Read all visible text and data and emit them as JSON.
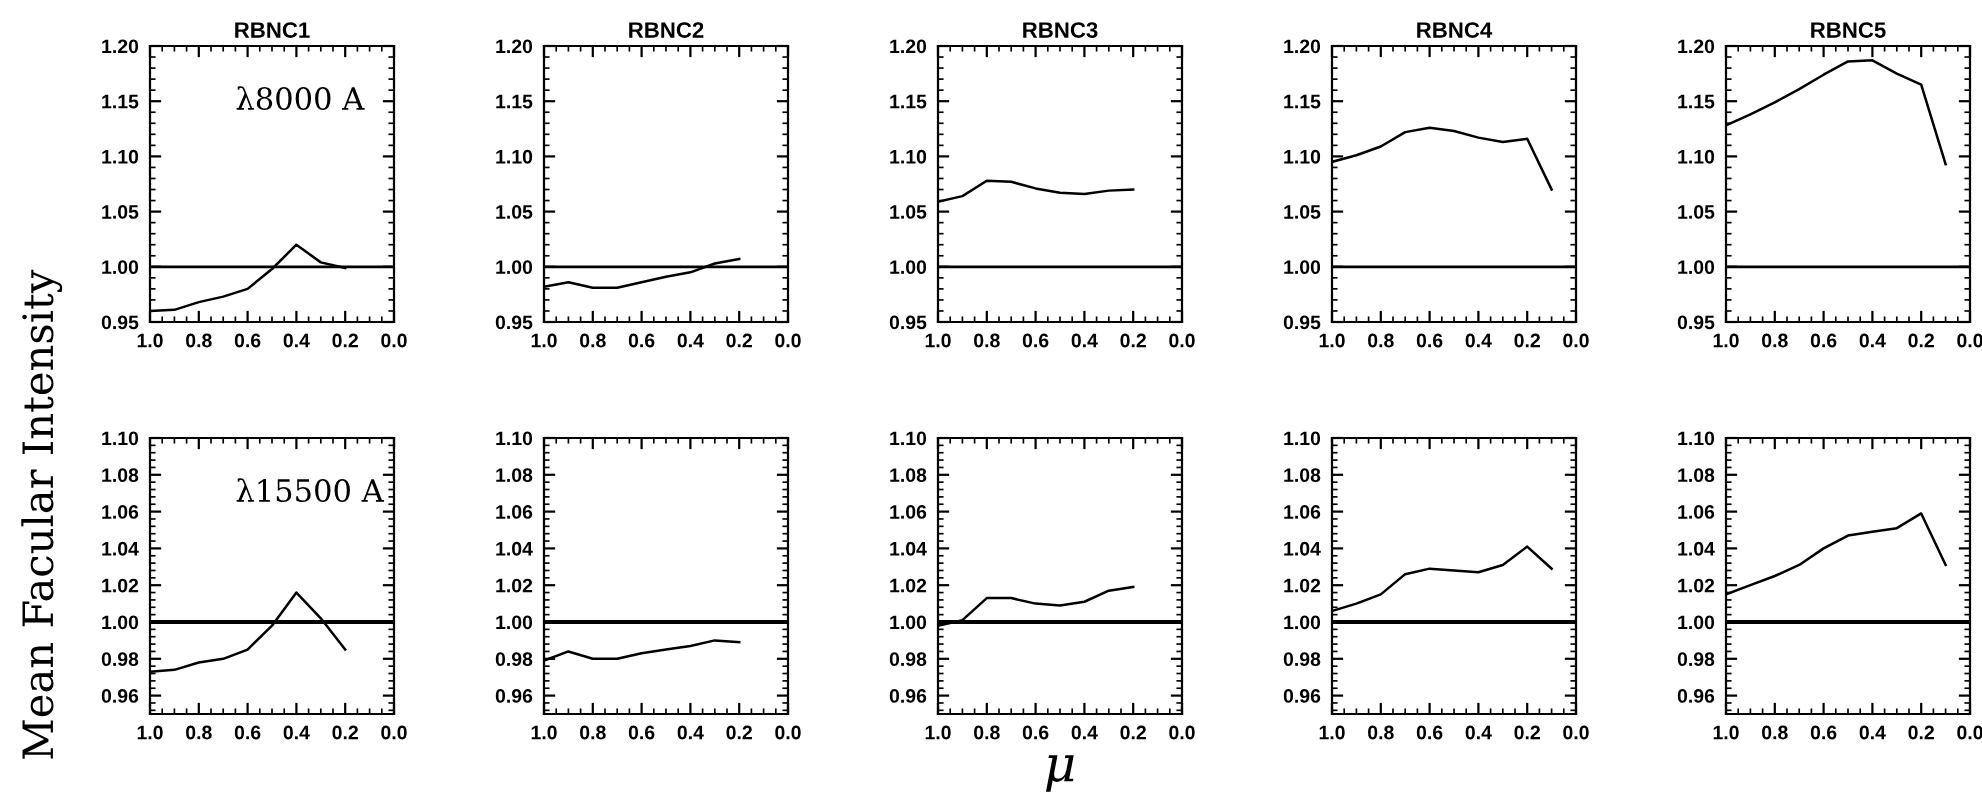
{
  "chart_data": [
    {
      "type": "line",
      "title": "RBNC1",
      "annotations": [
        "λ8000 A"
      ],
      "x": [
        1.0,
        0.9,
        0.8,
        0.7,
        0.6,
        0.5,
        0.4,
        0.3,
        0.2
      ],
      "values": [
        0.96,
        0.961,
        0.968,
        0.973,
        0.98,
        0.998,
        1.02,
        1.004,
        0.999
      ],
      "color": "#000000",
      "xlim": [
        1.0,
        0.0
      ],
      "xticks": [
        {
          "value": 1.0,
          "label": "1.0"
        },
        {
          "value": 0.8,
          "label": "0.8"
        },
        {
          "value": 0.6,
          "label": "0.6"
        },
        {
          "value": 0.4,
          "label": "0.4"
        },
        {
          "value": 0.2,
          "label": "0.2"
        },
        {
          "value": 0.0,
          "label": "0.0"
        }
      ],
      "ylim": [
        0.95,
        1.2
      ],
      "yticks": [
        0.95,
        {
          "value": 1.0,
          "label": "1.00"
        },
        1.05,
        {
          "value": 1.1,
          "label": "1.10"
        },
        1.15,
        {
          "value": 1.2,
          "label": "1.20"
        }
      ],
      "ref_lines": [
        {
          "axis": "y",
          "value": 1.0,
          "color": "#000000"
        }
      ]
    },
    {
      "type": "line",
      "title": "RBNC2",
      "x": [
        1.0,
        0.9,
        0.8,
        0.7,
        0.6,
        0.5,
        0.4,
        0.3,
        0.2
      ],
      "values": [
        0.982,
        0.986,
        0.981,
        0.981,
        0.986,
        0.991,
        0.995,
        1.003,
        1.007
      ],
      "color": "#000000",
      "xlim": [
        1.0,
        0.0
      ],
      "xticks": [
        {
          "value": 1.0,
          "label": "1.0"
        },
        {
          "value": 0.8,
          "label": "0.8"
        },
        {
          "value": 0.6,
          "label": "0.6"
        },
        {
          "value": 0.4,
          "label": "0.4"
        },
        {
          "value": 0.2,
          "label": "0.2"
        },
        {
          "value": 0.0,
          "label": "0.0"
        }
      ],
      "ylim": [
        0.95,
        1.2
      ],
      "yticks": [
        0.95,
        {
          "value": 1.0,
          "label": "1.00"
        },
        1.05,
        {
          "value": 1.1,
          "label": "1.10"
        },
        1.15,
        {
          "value": 1.2,
          "label": "1.20"
        }
      ],
      "ref_lines": [
        {
          "axis": "y",
          "value": 1.0,
          "color": "#000000"
        }
      ]
    },
    {
      "type": "line",
      "title": "RBNC3",
      "x": [
        1.0,
        0.9,
        0.8,
        0.7,
        0.6,
        0.5,
        0.4,
        0.3,
        0.2
      ],
      "values": [
        1.059,
        1.064,
        1.078,
        1.077,
        1.071,
        1.067,
        1.066,
        1.069,
        1.07
      ],
      "color": "#000000",
      "xlim": [
        1.0,
        0.0
      ],
      "xticks": [
        {
          "value": 1.0,
          "label": "1.0"
        },
        {
          "value": 0.8,
          "label": "0.8"
        },
        {
          "value": 0.6,
          "label": "0.6"
        },
        {
          "value": 0.4,
          "label": "0.4"
        },
        {
          "value": 0.2,
          "label": "0.2"
        },
        {
          "value": 0.0,
          "label": "0.0"
        }
      ],
      "ylim": [
        0.95,
        1.2
      ],
      "yticks": [
        0.95,
        {
          "value": 1.0,
          "label": "1.00"
        },
        1.05,
        {
          "value": 1.1,
          "label": "1.10"
        },
        1.15,
        {
          "value": 1.2,
          "label": "1.20"
        }
      ],
      "ref_lines": [
        {
          "axis": "y",
          "value": 1.0,
          "color": "#000000"
        }
      ]
    },
    {
      "type": "line",
      "title": "RBNC4",
      "x": [
        1.0,
        0.9,
        0.8,
        0.7,
        0.6,
        0.5,
        0.4,
        0.3,
        0.2,
        0.1
      ],
      "values": [
        1.095,
        1.101,
        1.109,
        1.122,
        1.126,
        1.123,
        1.117,
        1.113,
        1.116,
        1.07
      ],
      "color": "#000000",
      "xlim": [
        1.0,
        0.0
      ],
      "xticks": [
        {
          "value": 1.0,
          "label": "1.0"
        },
        {
          "value": 0.8,
          "label": "0.8"
        },
        {
          "value": 0.6,
          "label": "0.6"
        },
        {
          "value": 0.4,
          "label": "0.4"
        },
        {
          "value": 0.2,
          "label": "0.2"
        },
        {
          "value": 0.0,
          "label": "0.0"
        }
      ],
      "ylim": [
        0.95,
        1.2
      ],
      "yticks": [
        0.95,
        {
          "value": 1.0,
          "label": "1.00"
        },
        1.05,
        {
          "value": 1.1,
          "label": "1.10"
        },
        1.15,
        {
          "value": 1.2,
          "label": "1.20"
        }
      ],
      "ref_lines": [
        {
          "axis": "y",
          "value": 1.0,
          "color": "#000000"
        }
      ]
    },
    {
      "type": "line",
      "title": "RBNC5",
      "x": [
        1.0,
        0.9,
        0.8,
        0.7,
        0.6,
        0.5,
        0.4,
        0.3,
        0.2,
        0.1
      ],
      "values": [
        1.128,
        1.138,
        1.149,
        1.161,
        1.174,
        1.186,
        1.187,
        1.175,
        1.165,
        1.093
      ],
      "color": "#000000",
      "xlim": [
        1.0,
        0.0
      ],
      "xticks": [
        {
          "value": 1.0,
          "label": "1.0"
        },
        {
          "value": 0.8,
          "label": "0.8"
        },
        {
          "value": 0.6,
          "label": "0.6"
        },
        {
          "value": 0.4,
          "label": "0.4"
        },
        {
          "value": 0.2,
          "label": "0.2"
        },
        {
          "value": 0.0,
          "label": "0.0"
        }
      ],
      "ylim": [
        0.95,
        1.2
      ],
      "yticks": [
        0.95,
        {
          "value": 1.0,
          "label": "1.00"
        },
        1.05,
        {
          "value": 1.1,
          "label": "1.10"
        },
        1.15,
        {
          "value": 1.2,
          "label": "1.20"
        }
      ],
      "ref_lines": [
        {
          "axis": "y",
          "value": 1.0,
          "color": "#000000"
        }
      ]
    },
    {
      "type": "line",
      "ylabel": "Mean Facular Intensity",
      "annotations": [
        "λ15500 A"
      ],
      "x": [
        1.0,
        0.9,
        0.8,
        0.7,
        0.6,
        0.5,
        0.4,
        0.3,
        0.2
      ],
      "values": [
        0.973,
        0.974,
        0.978,
        0.98,
        0.985,
        0.998,
        1.016,
        1.002,
        0.985
      ],
      "color": "#000000",
      "xlim": [
        1.0,
        0.0
      ],
      "xticks": [
        {
          "value": 1.0,
          "label": "1.0"
        },
        {
          "value": 0.8,
          "label": "0.8"
        },
        {
          "value": 0.6,
          "label": "0.6"
        },
        {
          "value": 0.4,
          "label": "0.4"
        },
        {
          "value": 0.2,
          "label": "0.2"
        },
        {
          "value": 0.0,
          "label": "0.0"
        }
      ],
      "ylim": [
        0.95,
        1.1
      ],
      "yticks": [
        0.96,
        0.98,
        {
          "value": 1.0,
          "label": "1.00"
        },
        1.02,
        1.04,
        1.06,
        1.08,
        {
          "value": 1.1,
          "label": "1.10"
        }
      ],
      "ref_lines": [
        {
          "axis": "y",
          "value": 1.0,
          "color": "#000000"
        }
      ]
    },
    {
      "type": "line",
      "x": [
        1.0,
        0.9,
        0.8,
        0.7,
        0.6,
        0.5,
        0.4,
        0.3,
        0.2
      ],
      "values": [
        0.979,
        0.984,
        0.98,
        0.98,
        0.983,
        0.985,
        0.987,
        0.99,
        0.989
      ],
      "color": "#000000",
      "xlim": [
        1.0,
        0.0
      ],
      "xticks": [
        {
          "value": 1.0,
          "label": "1.0"
        },
        {
          "value": 0.8,
          "label": "0.8"
        },
        {
          "value": 0.6,
          "label": "0.6"
        },
        {
          "value": 0.4,
          "label": "0.4"
        },
        {
          "value": 0.2,
          "label": "0.2"
        },
        {
          "value": 0.0,
          "label": "0.0"
        }
      ],
      "ylim": [
        0.95,
        1.1
      ],
      "yticks": [
        0.96,
        0.98,
        {
          "value": 1.0,
          "label": "1.00"
        },
        1.02,
        1.04,
        1.06,
        1.08,
        {
          "value": 1.1,
          "label": "1.10"
        }
      ],
      "ref_lines": [
        {
          "axis": "y",
          "value": 1.0,
          "color": "#000000"
        }
      ]
    },
    {
      "type": "line",
      "xlabel": "μ",
      "x": [
        1.0,
        0.9,
        0.8,
        0.7,
        0.6,
        0.5,
        0.4,
        0.3,
        0.2
      ],
      "values": [
        0.998,
        1.001,
        1.013,
        1.013,
        1.01,
        1.009,
        1.011,
        1.017,
        1.019
      ],
      "color": "#000000",
      "xlim": [
        1.0,
        0.0
      ],
      "xticks": [
        {
          "value": 1.0,
          "label": "1.0"
        },
        {
          "value": 0.8,
          "label": "0.8"
        },
        {
          "value": 0.6,
          "label": "0.6"
        },
        {
          "value": 0.4,
          "label": "0.4"
        },
        {
          "value": 0.2,
          "label": "0.2"
        },
        {
          "value": 0.0,
          "label": "0.0"
        }
      ],
      "ylim": [
        0.95,
        1.1
      ],
      "yticks": [
        0.96,
        0.98,
        {
          "value": 1.0,
          "label": "1.00"
        },
        1.02,
        1.04,
        1.06,
        1.08,
        {
          "value": 1.1,
          "label": "1.10"
        }
      ],
      "ref_lines": [
        {
          "axis": "y",
          "value": 1.0,
          "color": "#000000"
        }
      ]
    },
    {
      "type": "line",
      "x": [
        1.0,
        0.9,
        0.8,
        0.7,
        0.6,
        0.5,
        0.4,
        0.3,
        0.2,
        0.1
      ],
      "values": [
        1.006,
        1.01,
        1.015,
        1.026,
        1.029,
        1.028,
        1.027,
        1.031,
        1.041,
        1.029
      ],
      "color": "#000000",
      "xlim": [
        1.0,
        0.0
      ],
      "xticks": [
        {
          "value": 1.0,
          "label": "1.0"
        },
        {
          "value": 0.8,
          "label": "0.8"
        },
        {
          "value": 0.6,
          "label": "0.6"
        },
        {
          "value": 0.4,
          "label": "0.4"
        },
        {
          "value": 0.2,
          "label": "0.2"
        },
        {
          "value": 0.0,
          "label": "0.0"
        }
      ],
      "ylim": [
        0.95,
        1.1
      ],
      "yticks": [
        0.96,
        0.98,
        {
          "value": 1.0,
          "label": "1.00"
        },
        1.02,
        1.04,
        1.06,
        1.08,
        {
          "value": 1.1,
          "label": "1.10"
        }
      ],
      "ref_lines": [
        {
          "axis": "y",
          "value": 1.0,
          "color": "#000000"
        }
      ]
    },
    {
      "type": "line",
      "x": [
        1.0,
        0.9,
        0.8,
        0.7,
        0.6,
        0.5,
        0.4,
        0.3,
        0.2,
        0.1
      ],
      "values": [
        1.015,
        1.02,
        1.025,
        1.031,
        1.04,
        1.047,
        1.049,
        1.051,
        1.059,
        1.031
      ],
      "color": "#000000",
      "xlim": [
        1.0,
        0.0
      ],
      "xticks": [
        {
          "value": 1.0,
          "label": "1.0"
        },
        {
          "value": 0.8,
          "label": "0.8"
        },
        {
          "value": 0.6,
          "label": "0.6"
        },
        {
          "value": 0.4,
          "label": "0.4"
        },
        {
          "value": 0.2,
          "label": "0.2"
        },
        {
          "value": 0.0,
          "label": "0.0"
        }
      ],
      "ylim": [
        0.95,
        1.1
      ],
      "yticks": [
        0.96,
        0.98,
        {
          "value": 1.0,
          "label": "1.00"
        },
        1.02,
        1.04,
        1.06,
        1.08,
        {
          "value": 1.1,
          "label": "1.10"
        }
      ],
      "ref_lines": [
        {
          "axis": "y",
          "value": 1.0,
          "color": "#000000"
        }
      ]
    }
  ]
}
